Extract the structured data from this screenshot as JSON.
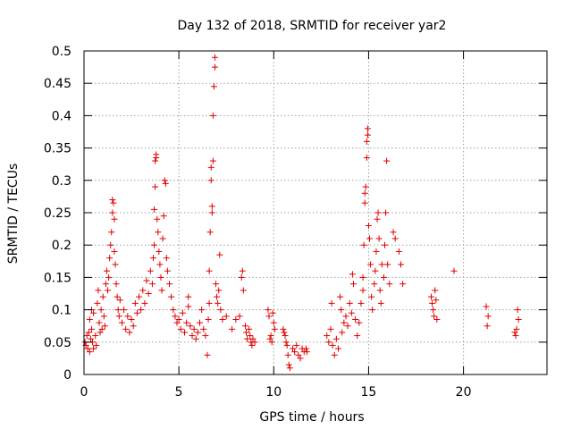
{
  "chart_data": {
    "type": "scatter",
    "title": "Day 132 of 2018, SRMTID for receiver yar2",
    "xlabel": "GPS time / hours",
    "ylabel": "SRMTID / TECUs",
    "xlim": [
      0,
      24.4
    ],
    "ylim": [
      0,
      0.5
    ],
    "xticks": [
      0,
      5,
      10,
      15,
      20
    ],
    "yticks": [
      0,
      0.05,
      0.1,
      0.15,
      0.2,
      0.25,
      0.3,
      0.35,
      0.4,
      0.45,
      0.5
    ],
    "grid": true,
    "marker": "+",
    "color": "#dd0000",
    "series": [
      {
        "name": "SRMTID",
        "points": [
          [
            0.05,
            0.05
          ],
          [
            0.1,
            0.045
          ],
          [
            0.15,
            0.06
          ],
          [
            0.2,
            0.04
          ],
          [
            0.25,
            0.065
          ],
          [
            0.3,
            0.035
          ],
          [
            0.35,
            0.055
          ],
          [
            0.4,
            0.07
          ],
          [
            0.45,
            0.05
          ],
          [
            0.5,
            0.04
          ],
          [
            0.3,
            0.085
          ],
          [
            0.4,
            0.1
          ],
          [
            0.5,
            0.095
          ],
          [
            0.6,
            0.06
          ],
          [
            0.65,
            0.045
          ],
          [
            0.7,
            0.11
          ],
          [
            0.75,
            0.13
          ],
          [
            0.8,
            0.08
          ],
          [
            0.85,
            0.065
          ],
          [
            0.9,
            0.1
          ],
          [
            0.95,
            0.07
          ],
          [
            1.0,
            0.12
          ],
          [
            1.05,
            0.09
          ],
          [
            1.1,
            0.075
          ],
          [
            1.15,
            0.14
          ],
          [
            1.2,
            0.16
          ],
          [
            1.25,
            0.13
          ],
          [
            1.3,
            0.15
          ],
          [
            1.35,
            0.18
          ],
          [
            1.4,
            0.2
          ],
          [
            1.45,
            0.22
          ],
          [
            1.5,
            0.25
          ],
          [
            1.5,
            0.27
          ],
          [
            1.55,
            0.265
          ],
          [
            1.6,
            0.24
          ],
          [
            1.6,
            0.19
          ],
          [
            1.65,
            0.17
          ],
          [
            1.7,
            0.14
          ],
          [
            1.75,
            0.12
          ],
          [
            1.8,
            0.1
          ],
          [
            1.85,
            0.09
          ],
          [
            1.9,
            0.115
          ],
          [
            2.0,
            0.08
          ],
          [
            2.1,
            0.1
          ],
          [
            2.2,
            0.07
          ],
          [
            2.3,
            0.09
          ],
          [
            2.4,
            0.065
          ],
          [
            2.5,
            0.085
          ],
          [
            2.6,
            0.075
          ],
          [
            2.7,
            0.11
          ],
          [
            2.8,
            0.095
          ],
          [
            2.9,
            0.12
          ],
          [
            3.0,
            0.1
          ],
          [
            3.1,
            0.13
          ],
          [
            3.2,
            0.11
          ],
          [
            3.3,
            0.145
          ],
          [
            3.4,
            0.125
          ],
          [
            3.5,
            0.16
          ],
          [
            3.6,
            0.14
          ],
          [
            3.65,
            0.18
          ],
          [
            3.7,
            0.2
          ],
          [
            3.7,
            0.255
          ],
          [
            3.75,
            0.29
          ],
          [
            3.75,
            0.33
          ],
          [
            3.8,
            0.34
          ],
          [
            3.8,
            0.335
          ],
          [
            3.85,
            0.24
          ],
          [
            3.9,
            0.22
          ],
          [
            3.95,
            0.19
          ],
          [
            4.0,
            0.17
          ],
          [
            4.05,
            0.15
          ],
          [
            4.1,
            0.13
          ],
          [
            4.15,
            0.21
          ],
          [
            4.2,
            0.245
          ],
          [
            4.25,
            0.3
          ],
          [
            4.3,
            0.295
          ],
          [
            4.35,
            0.18
          ],
          [
            4.4,
            0.16
          ],
          [
            4.5,
            0.14
          ],
          [
            4.6,
            0.12
          ],
          [
            4.7,
            0.1
          ],
          [
            4.8,
            0.09
          ],
          [
            4.9,
            0.08
          ],
          [
            5.0,
            0.085
          ],
          [
            5.1,
            0.07
          ],
          [
            5.2,
            0.095
          ],
          [
            5.3,
            0.065
          ],
          [
            5.4,
            0.08
          ],
          [
            5.5,
            0.12
          ],
          [
            5.5,
            0.105
          ],
          [
            5.6,
            0.075
          ],
          [
            5.7,
            0.06
          ],
          [
            5.8,
            0.07
          ],
          [
            5.9,
            0.055
          ],
          [
            6.0,
            0.065
          ],
          [
            6.1,
            0.08
          ],
          [
            6.2,
            0.1
          ],
          [
            6.3,
            0.07
          ],
          [
            6.4,
            0.06
          ],
          [
            6.5,
            0.03
          ],
          [
            6.55,
            0.085
          ],
          [
            6.6,
            0.11
          ],
          [
            6.6,
            0.16
          ],
          [
            6.65,
            0.22
          ],
          [
            6.7,
            0.3
          ],
          [
            6.7,
            0.32
          ],
          [
            6.75,
            0.25
          ],
          [
            6.75,
            0.26
          ],
          [
            6.8,
            0.33
          ],
          [
            6.8,
            0.4
          ],
          [
            6.85,
            0.445
          ],
          [
            6.9,
            0.475
          ],
          [
            6.9,
            0.49
          ],
          [
            6.95,
            0.14
          ],
          [
            7.0,
            0.12
          ],
          [
            7.05,
            0.11
          ],
          [
            7.1,
            0.13
          ],
          [
            7.15,
            0.185
          ],
          [
            7.2,
            0.1
          ],
          [
            7.3,
            0.085
          ],
          [
            7.5,
            0.09
          ],
          [
            7.8,
            0.07
          ],
          [
            8.0,
            0.085
          ],
          [
            8.2,
            0.09
          ],
          [
            8.3,
            0.15
          ],
          [
            8.35,
            0.16
          ],
          [
            8.4,
            0.13
          ],
          [
            8.5,
            0.075
          ],
          [
            8.55,
            0.065
          ],
          [
            8.6,
            0.055
          ],
          [
            8.7,
            0.07
          ],
          [
            8.75,
            0.06
          ],
          [
            8.8,
            0.05
          ],
          [
            8.85,
            0.045
          ],
          [
            8.9,
            0.055
          ],
          [
            9.0,
            0.05
          ],
          [
            9.7,
            0.1
          ],
          [
            9.75,
            0.09
          ],
          [
            9.8,
            0.055
          ],
          [
            9.85,
            0.06
          ],
          [
            9.9,
            0.05
          ],
          [
            9.95,
            0.095
          ],
          [
            10.0,
            0.08
          ],
          [
            10.05,
            0.07
          ],
          [
            10.5,
            0.07
          ],
          [
            10.55,
            0.065
          ],
          [
            10.6,
            0.06
          ],
          [
            10.65,
            0.05
          ],
          [
            10.7,
            0.045
          ],
          [
            10.75,
            0.03
          ],
          [
            10.8,
            0.015
          ],
          [
            10.85,
            0.01
          ],
          [
            11.0,
            0.04
          ],
          [
            11.1,
            0.035
          ],
          [
            11.2,
            0.045
          ],
          [
            11.3,
            0.03
          ],
          [
            11.4,
            0.025
          ],
          [
            11.5,
            0.04
          ],
          [
            11.6,
            0.035
          ],
          [
            11.7,
            0.04
          ],
          [
            11.75,
            0.035
          ],
          [
            12.8,
            0.06
          ],
          [
            12.9,
            0.05
          ],
          [
            13.0,
            0.07
          ],
          [
            13.05,
            0.11
          ],
          [
            13.1,
            0.045
          ],
          [
            13.2,
            0.03
          ],
          [
            13.3,
            0.055
          ],
          [
            13.4,
            0.04
          ],
          [
            13.5,
            0.12
          ],
          [
            13.55,
            0.1
          ],
          [
            13.6,
            0.065
          ],
          [
            13.7,
            0.08
          ],
          [
            13.8,
            0.09
          ],
          [
            13.9,
            0.075
          ],
          [
            14.0,
            0.11
          ],
          [
            14.1,
            0.095
          ],
          [
            14.15,
            0.155
          ],
          [
            14.2,
            0.14
          ],
          [
            14.3,
            0.085
          ],
          [
            14.4,
            0.06
          ],
          [
            14.5,
            0.08
          ],
          [
            14.6,
            0.11
          ],
          [
            14.7,
            0.13
          ],
          [
            14.7,
            0.15
          ],
          [
            14.75,
            0.2
          ],
          [
            14.8,
            0.265
          ],
          [
            14.8,
            0.28
          ],
          [
            14.85,
            0.29
          ],
          [
            14.9,
            0.335
          ],
          [
            14.9,
            0.36
          ],
          [
            14.95,
            0.38
          ],
          [
            14.95,
            0.37
          ],
          [
            15.0,
            0.23
          ],
          [
            15.05,
            0.21
          ],
          [
            15.1,
            0.17
          ],
          [
            15.15,
            0.12
          ],
          [
            15.2,
            0.1
          ],
          [
            15.3,
            0.14
          ],
          [
            15.35,
            0.16
          ],
          [
            15.4,
            0.19
          ],
          [
            15.45,
            0.24
          ],
          [
            15.5,
            0.25
          ],
          [
            15.55,
            0.21
          ],
          [
            15.6,
            0.13
          ],
          [
            15.65,
            0.11
          ],
          [
            15.7,
            0.17
          ],
          [
            15.8,
            0.15
          ],
          [
            15.85,
            0.2
          ],
          [
            15.9,
            0.25
          ],
          [
            15.95,
            0.33
          ],
          [
            16.0,
            0.17
          ],
          [
            16.1,
            0.14
          ],
          [
            16.3,
            0.22
          ],
          [
            16.4,
            0.21
          ],
          [
            16.6,
            0.19
          ],
          [
            16.8,
            0.14
          ],
          [
            16.7,
            0.17
          ],
          [
            18.3,
            0.12
          ],
          [
            18.35,
            0.11
          ],
          [
            18.4,
            0.1
          ],
          [
            18.45,
            0.09
          ],
          [
            18.5,
            0.13
          ],
          [
            18.55,
            0.115
          ],
          [
            18.6,
            0.085
          ],
          [
            19.5,
            0.16
          ],
          [
            21.2,
            0.105
          ],
          [
            21.25,
            0.075
          ],
          [
            21.3,
            0.09
          ],
          [
            22.7,
            0.065
          ],
          [
            22.75,
            0.06
          ],
          [
            22.8,
            0.07
          ],
          [
            22.85,
            0.1
          ],
          [
            22.9,
            0.085
          ]
        ]
      }
    ]
  }
}
